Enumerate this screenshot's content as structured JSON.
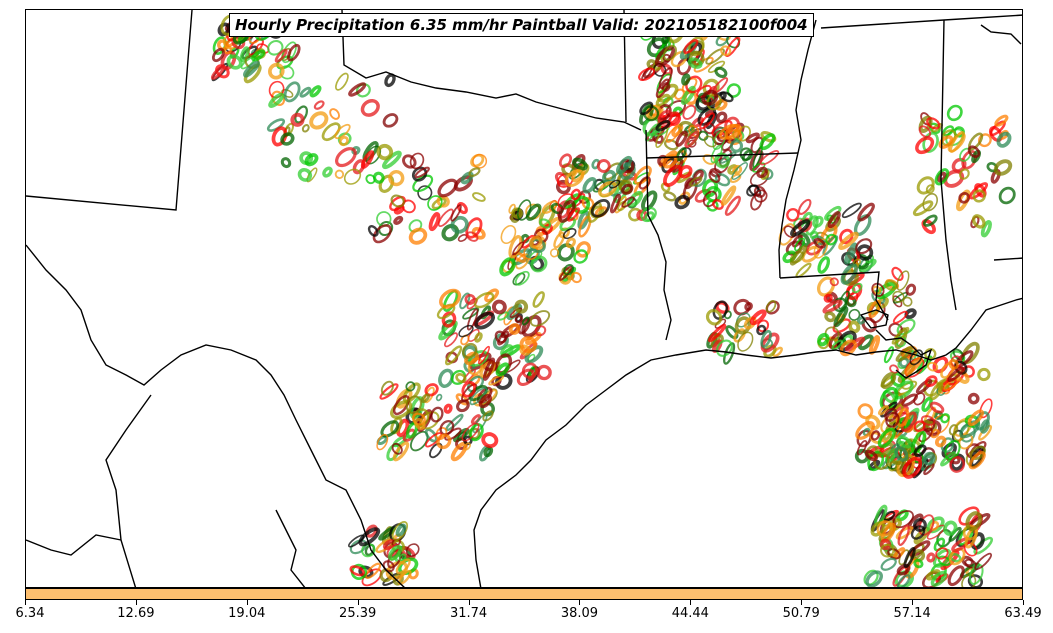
{
  "title": "Hourly Precipitation 6.35 mm/hr Paintball Valid: 202105182100f004",
  "colorbar": {
    "color": "#fdbf6f",
    "ticks": [
      "6.34",
      "12.69",
      "19.04",
      "25.39",
      "31.74",
      "38.09",
      "44.44",
      "50.79",
      "57.14",
      "63.49"
    ]
  },
  "map": {
    "background": "#ffffff",
    "boundary_color": "#000000",
    "member_colors": [
      "#ff7f00",
      "#f39c12",
      "#e41a1c",
      "#ff0000",
      "#00c800",
      "#32cd32",
      "#2e8b57",
      "#006400",
      "#808000",
      "#9a9a00",
      "#8b0000",
      "#800000",
      "#000000"
    ]
  }
}
